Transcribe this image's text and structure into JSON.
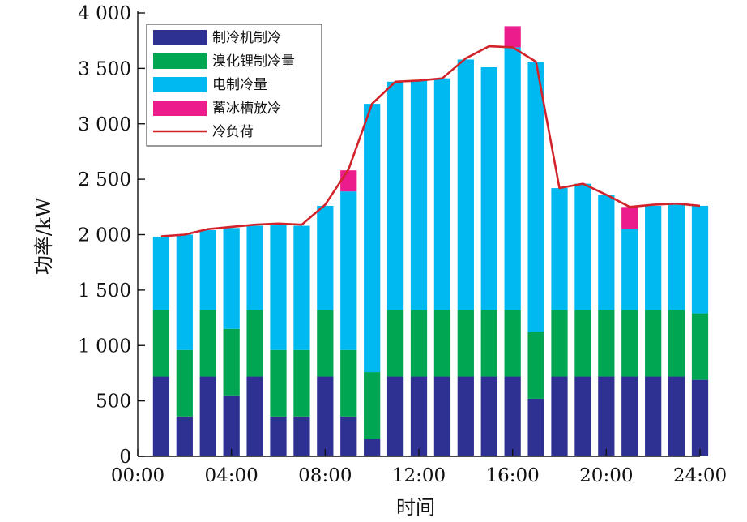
{
  "chart_data": {
    "type": "bar",
    "stacked": true,
    "title": "",
    "xlabel": "时间",
    "ylabel": "功率/kW",
    "ylim": [
      0,
      4000
    ],
    "yticks": [
      0,
      500,
      1000,
      1500,
      2000,
      2500,
      3000,
      3500,
      4000
    ],
    "ytick_labels": [
      "0",
      "500",
      "1 000",
      "1 500",
      "2 000",
      "2 500",
      "3 000",
      "3 500",
      "4 000"
    ],
    "xlim": [
      0,
      24
    ],
    "xticks": [
      0,
      4,
      8,
      12,
      16,
      20,
      24
    ],
    "xtick_labels": [
      "00:00",
      "04:00",
      "08:00",
      "12:00",
      "16:00",
      "20:00",
      "24:00"
    ],
    "x": [
      1,
      2,
      3,
      4,
      5,
      6,
      7,
      8,
      9,
      10,
      11,
      12,
      13,
      14,
      15,
      16,
      17,
      18,
      19,
      20,
      21,
      22,
      23,
      24
    ],
    "legend_position": "top-left",
    "series": [
      {
        "name": "制冷机制冷",
        "kind": "bar",
        "color": "#2e3192",
        "values": [
          720,
          360,
          720,
          550,
          720,
          360,
          360,
          720,
          360,
          160,
          720,
          720,
          720,
          720,
          720,
          720,
          520,
          720,
          720,
          720,
          720,
          720,
          720,
          690
        ]
      },
      {
        "name": "溴化锂制冷量",
        "kind": "bar",
        "color": "#00a651",
        "values": [
          600,
          600,
          600,
          600,
          600,
          600,
          600,
          600,
          600,
          600,
          600,
          600,
          600,
          600,
          600,
          600,
          600,
          600,
          600,
          600,
          600,
          600,
          600,
          600
        ]
      },
      {
        "name": "电制冷量",
        "kind": "bar",
        "color": "#00b9f1",
        "values": [
          660,
          1040,
          720,
          910,
          760,
          1130,
          1120,
          940,
          1430,
          2420,
          2060,
          2070,
          2090,
          2260,
          2190,
          2370,
          2440,
          1100,
          1140,
          1040,
          730,
          940,
          950,
          970
        ]
      },
      {
        "name": "蓄冰槽放冷",
        "kind": "bar",
        "color": "#ec1c8c",
        "values": [
          0,
          0,
          0,
          0,
          0,
          0,
          0,
          0,
          190,
          0,
          0,
          0,
          0,
          0,
          0,
          190,
          0,
          0,
          0,
          0,
          200,
          0,
          0,
          0
        ]
      },
      {
        "name": "冷负荷",
        "kind": "line",
        "color": "#d2232a",
        "values": [
          1985,
          2000,
          2050,
          2070,
          2090,
          2100,
          2090,
          2270,
          2590,
          3180,
          3380,
          3390,
          3410,
          3590,
          3700,
          3690,
          3560,
          2420,
          2460,
          2360,
          2250,
          2270,
          2280,
          2260
        ]
      }
    ]
  }
}
